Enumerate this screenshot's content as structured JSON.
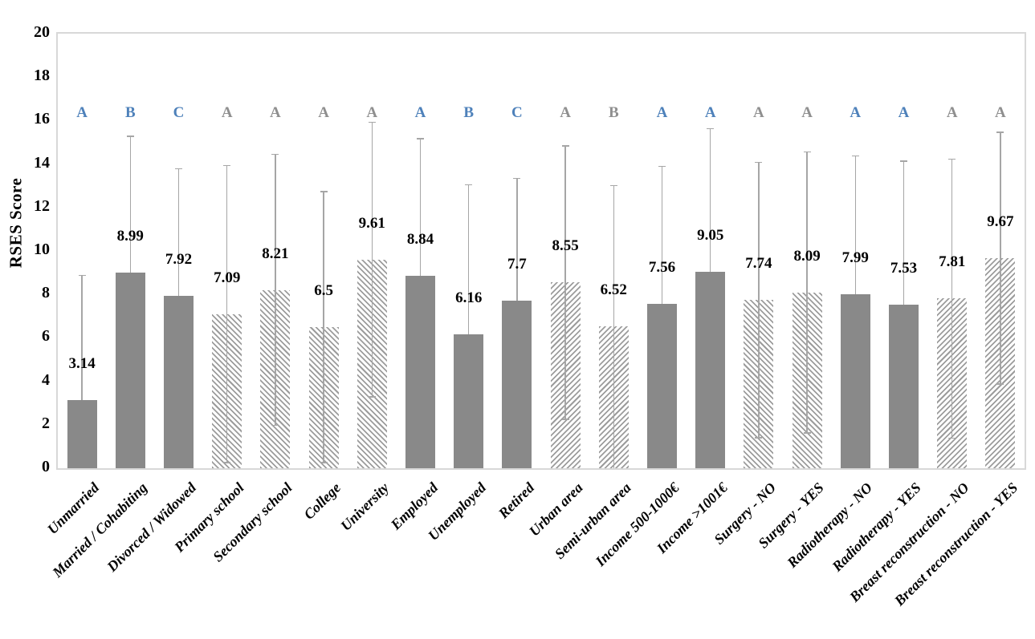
{
  "chart_data": {
    "type": "bar",
    "title": "",
    "xlabel": "",
    "ylabel": "RSES Score",
    "ylim": [
      0,
      20
    ],
    "ytick_step": 2,
    "ytick_labels": [
      "0",
      "2",
      "4",
      "6",
      "8",
      "10",
      "12",
      "14",
      "16",
      "18",
      "20"
    ],
    "grid": false,
    "legend": "none",
    "error_bars": "symmetric",
    "bars": [
      {
        "category": "Unmarried",
        "value": 3.14,
        "value_label": "3.14",
        "error": 5.76,
        "letter": "A",
        "letter_color": "blue",
        "fill": "solid"
      },
      {
        "category": "Married / Cohabiting",
        "value": 8.99,
        "value_label": "8.99",
        "error": 6.31,
        "letter": "B",
        "letter_color": "blue",
        "fill": "solid"
      },
      {
        "category": "Divorced / Widowed",
        "value": 7.92,
        "value_label": "7.92",
        "error": 5.9,
        "letter": "C",
        "letter_color": "blue",
        "fill": "solid"
      },
      {
        "category": "Primary school",
        "value": 7.09,
        "value_label": "7.09",
        "error": 6.87,
        "letter": "A",
        "letter_color": "gray",
        "fill": "hatch-back"
      },
      {
        "category": "Secondary school",
        "value": 8.21,
        "value_label": "8.21",
        "error": 6.27,
        "letter": "A",
        "letter_color": "gray",
        "fill": "hatch-back"
      },
      {
        "category": "College",
        "value": 6.5,
        "value_label": "6.5",
        "error": 6.26,
        "letter": "A",
        "letter_color": "gray",
        "fill": "hatch-back"
      },
      {
        "category": "University",
        "value": 9.61,
        "value_label": "9.61",
        "error": 6.35,
        "letter": "A",
        "letter_color": "gray",
        "fill": "hatch-back"
      },
      {
        "category": "Employed",
        "value": 8.84,
        "value_label": "8.84",
        "error": 6.35,
        "letter": "A",
        "letter_color": "blue",
        "fill": "solid"
      },
      {
        "category": "Unemployed",
        "value": 6.16,
        "value_label": "6.16",
        "error": 6.92,
        "letter": "B",
        "letter_color": "blue",
        "fill": "solid"
      },
      {
        "category": "Retired",
        "value": 7.7,
        "value_label": "7.7",
        "error": 5.67,
        "letter": "C",
        "letter_color": "blue",
        "fill": "solid"
      },
      {
        "category": "Urban area",
        "value": 8.55,
        "value_label": "8.55",
        "error": 6.32,
        "letter": "A",
        "letter_color": "gray",
        "fill": "hatch-fwd"
      },
      {
        "category": "Semi-urban area",
        "value": 6.52,
        "value_label": "6.52",
        "error": 6.52,
        "letter": "B",
        "letter_color": "gray",
        "fill": "hatch-fwd"
      },
      {
        "category": "Income 500-1000€",
        "value": 7.56,
        "value_label": "7.56",
        "error": 6.37,
        "letter": "A",
        "letter_color": "blue",
        "fill": "solid"
      },
      {
        "category": "Income >1001€",
        "value": 9.05,
        "value_label": "9.05",
        "error": 6.6,
        "letter": "A",
        "letter_color": "blue",
        "fill": "solid"
      },
      {
        "category": "Surgery - NO",
        "value": 7.74,
        "value_label": "7.74",
        "error": 6.37,
        "letter": "A",
        "letter_color": "gray",
        "fill": "hatch-back"
      },
      {
        "category": "Surgery - YES",
        "value": 8.09,
        "value_label": "8.09",
        "error": 6.49,
        "letter": "A",
        "letter_color": "gray",
        "fill": "hatch-back"
      },
      {
        "category": "Radiotherapy - NO",
        "value": 7.99,
        "value_label": "7.99",
        "error": 6.41,
        "letter": "A",
        "letter_color": "blue",
        "fill": "solid"
      },
      {
        "category": "Radiotherapy - YES",
        "value": 7.53,
        "value_label": "7.53",
        "error": 6.64,
        "letter": "A",
        "letter_color": "blue",
        "fill": "solid"
      },
      {
        "category": "Breast reconstruction - NO",
        "value": 7.81,
        "value_label": "7.81",
        "error": 6.45,
        "letter": "A",
        "letter_color": "gray",
        "fill": "hatch-fwd"
      },
      {
        "category": "Breast reconstruction - YES",
        "value": 9.67,
        "value_label": "9.67",
        "error": 5.82,
        "letter": "A",
        "letter_color": "gray",
        "fill": "hatch-fwd"
      }
    ],
    "colors": {
      "solid_bar": "#898989",
      "hatch_stripe": "#9c9c9c",
      "whisker": "#a6a6a6",
      "letter_blue": "#4e81ba",
      "letter_gray": "#8f8f8f",
      "plot_border": "#d8d8d8",
      "text": "#000000"
    }
  }
}
